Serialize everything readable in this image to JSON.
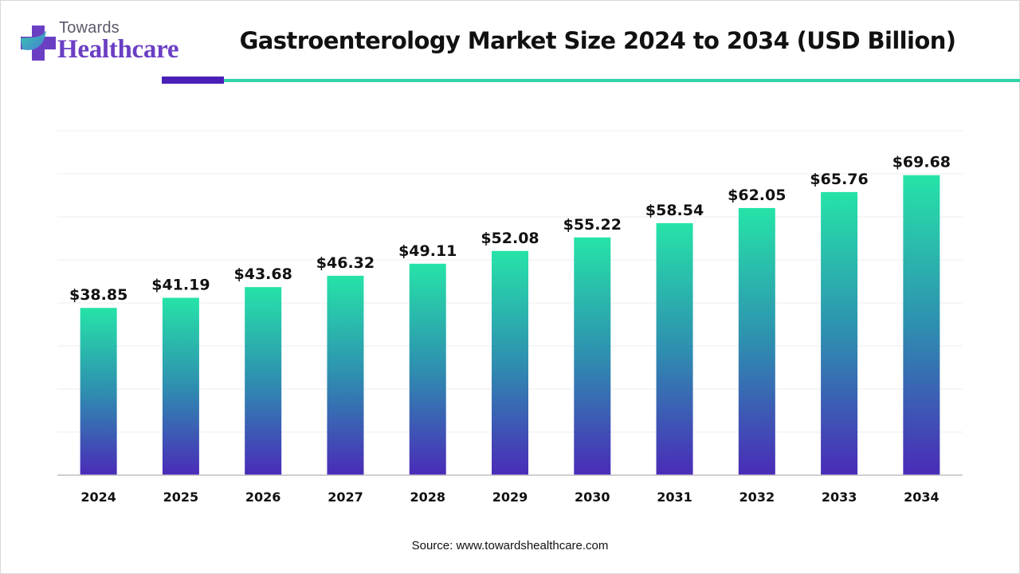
{
  "brand": {
    "top": "Towards",
    "main": "Healthcare",
    "logo_icon": "medical-cross-icon"
  },
  "colors": {
    "bar_top": "#26e3a8",
    "bar_mid": "#2e8fb0",
    "bar_bottom": "#4a2bb8",
    "accent_dark": "#4a1fb8",
    "accent_teal": "#2fd4a7",
    "brand_purple": "#6b3fc4"
  },
  "chart_data": {
    "type": "bar",
    "title": "Gastroenterology Market Size 2024 to 2034 (USD Billion)",
    "xlabel": "",
    "ylabel": "",
    "categories": [
      "2024",
      "2025",
      "2026",
      "2027",
      "2028",
      "2029",
      "2030",
      "2031",
      "2032",
      "2033",
      "2034"
    ],
    "values": [
      38.85,
      41.19,
      43.68,
      46.32,
      49.11,
      52.08,
      55.22,
      58.54,
      62.05,
      65.76,
      69.68
    ],
    "value_labels": [
      "$38.85",
      "$41.19",
      "$43.68",
      "$46.32",
      "$49.11",
      "$52.08",
      "$55.22",
      "$58.54",
      "$62.05",
      "$65.76",
      "$69.68"
    ],
    "ylim": [
      0,
      80
    ],
    "grid": true,
    "legend": "none"
  },
  "source": "Source: www.towardshealthcare.com"
}
